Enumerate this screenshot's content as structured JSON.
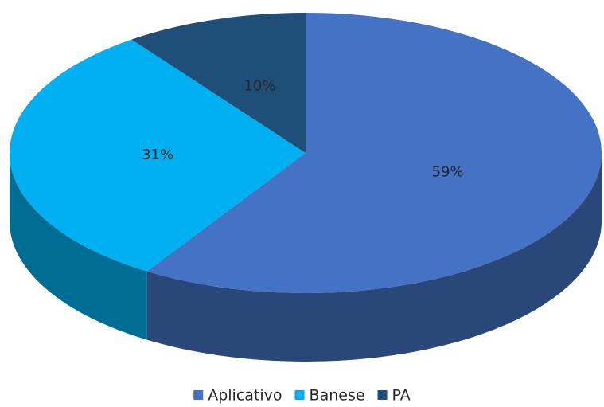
{
  "chart_data": {
    "type": "pie",
    "categories": [
      "Aplicativo",
      "Banese",
      "PA"
    ],
    "values": [
      59,
      31,
      10
    ],
    "value_labels": [
      "59%",
      "31%",
      "10%"
    ],
    "colors": [
      "#4472c4",
      "#00b0f0",
      "#1f4e79"
    ],
    "legend": "bottom"
  }
}
